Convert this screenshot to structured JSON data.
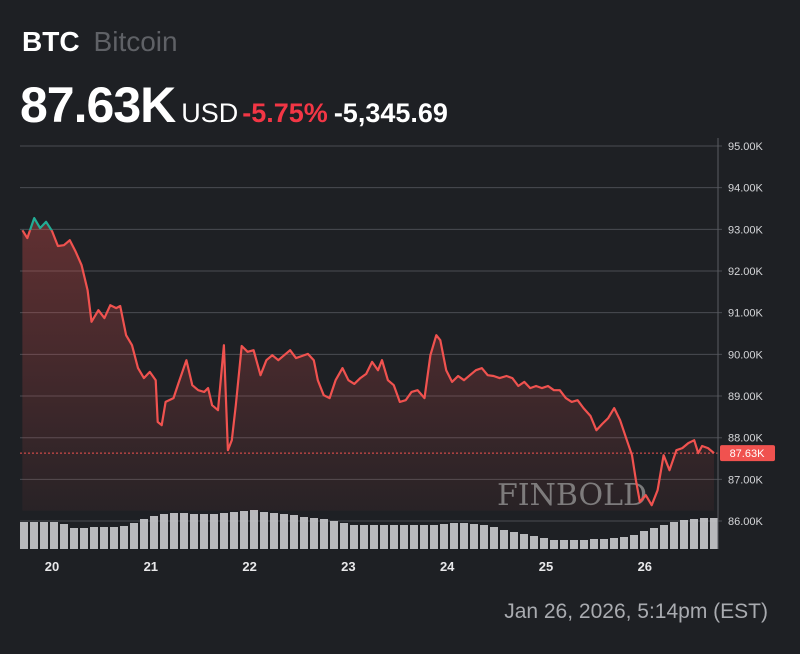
{
  "header": {
    "symbol": "BTC",
    "name": "Bitcoin",
    "price": "87.63K",
    "currency": "USD",
    "change_pct": "-5.75%",
    "change_abs": "-5,345.69"
  },
  "timestamp": "Jan 26, 2026, 5:14pm (EST)",
  "watermark": "FINBOLD",
  "chart_data": {
    "type": "line",
    "title": "",
    "xlabel": "",
    "ylabel": "",
    "x_ticks": [
      "20",
      "21",
      "22",
      "23",
      "24",
      "25",
      "26"
    ],
    "x_tick_values": [
      20,
      21,
      22,
      23,
      24,
      25,
      26
    ],
    "xlim": [
      19.68,
      26.72
    ],
    "y_ticks": [
      "95.00K",
      "94.00K",
      "93.00K",
      "92.00K",
      "91.00K",
      "90.00K",
      "89.00K",
      "88.00K",
      "87.00K",
      "86.00K"
    ],
    "y_tick_values": [
      95,
      94,
      93,
      92,
      91,
      90,
      89,
      88,
      87,
      86
    ],
    "ylim": [
      85.35,
      95.2
    ],
    "y_unit": "K USD",
    "grid": true,
    "last_price_label": "87.63K",
    "last_price": 87.63,
    "previous_close": 92.98,
    "colors": {
      "down": "#f0524f",
      "up": "#22ab94",
      "tag": "#f0524f",
      "volume": "#c9cacd"
    },
    "series": [
      {
        "points": [
          [
            19.7,
            92.98
          ],
          [
            19.75,
            92.79
          ],
          [
            19.82,
            93.27
          ],
          [
            19.88,
            93.03
          ],
          [
            19.94,
            93.18
          ],
          [
            20.0,
            92.96
          ],
          [
            20.06,
            92.6
          ],
          [
            20.12,
            92.62
          ],
          [
            20.18,
            92.74
          ],
          [
            20.24,
            92.46
          ],
          [
            20.3,
            92.14
          ],
          [
            20.36,
            91.54
          ],
          [
            20.4,
            90.78
          ],
          [
            20.47,
            91.06
          ],
          [
            20.53,
            90.87
          ],
          [
            20.59,
            91.18
          ],
          [
            20.65,
            91.11
          ],
          [
            20.69,
            91.16
          ],
          [
            20.75,
            90.46
          ],
          [
            20.81,
            90.22
          ],
          [
            20.87,
            89.67
          ],
          [
            20.93,
            89.43
          ],
          [
            20.99,
            89.58
          ],
          [
            21.05,
            89.38
          ],
          [
            21.07,
            88.38
          ],
          [
            21.11,
            88.3
          ],
          [
            21.15,
            88.86
          ],
          [
            21.23,
            88.95
          ],
          [
            21.28,
            89.31
          ],
          [
            21.36,
            89.86
          ],
          [
            21.42,
            89.26
          ],
          [
            21.48,
            89.14
          ],
          [
            21.54,
            89.1
          ],
          [
            21.58,
            89.19
          ],
          [
            21.62,
            88.78
          ],
          [
            21.68,
            88.66
          ],
          [
            21.74,
            90.22
          ],
          [
            21.78,
            87.7
          ],
          [
            21.82,
            87.94
          ],
          [
            21.86,
            88.78
          ],
          [
            21.92,
            90.2
          ],
          [
            21.98,
            90.06
          ],
          [
            22.04,
            90.1
          ],
          [
            22.11,
            89.5
          ],
          [
            22.17,
            89.86
          ],
          [
            22.23,
            89.98
          ],
          [
            22.29,
            89.86
          ],
          [
            22.35,
            89.98
          ],
          [
            22.41,
            90.1
          ],
          [
            22.47,
            89.91
          ],
          [
            22.53,
            89.96
          ],
          [
            22.59,
            90.01
          ],
          [
            22.65,
            89.86
          ],
          [
            22.69,
            89.38
          ],
          [
            22.75,
            89.02
          ],
          [
            22.81,
            88.95
          ],
          [
            22.87,
            89.38
          ],
          [
            22.94,
            89.67
          ],
          [
            23.0,
            89.38
          ],
          [
            23.06,
            89.29
          ],
          [
            23.12,
            89.43
          ],
          [
            23.18,
            89.53
          ],
          [
            23.24,
            89.82
          ],
          [
            23.3,
            89.62
          ],
          [
            23.34,
            89.86
          ],
          [
            23.4,
            89.38
          ],
          [
            23.46,
            89.26
          ],
          [
            23.52,
            88.86
          ],
          [
            23.58,
            88.9
          ],
          [
            23.64,
            89.1
          ],
          [
            23.7,
            89.14
          ],
          [
            23.77,
            88.95
          ],
          [
            23.83,
            89.98
          ],
          [
            23.89,
            90.46
          ],
          [
            23.93,
            90.34
          ],
          [
            23.99,
            89.62
          ],
          [
            24.05,
            89.34
          ],
          [
            24.11,
            89.48
          ],
          [
            24.17,
            89.38
          ],
          [
            24.23,
            89.5
          ],
          [
            24.29,
            89.62
          ],
          [
            24.35,
            89.67
          ],
          [
            24.41,
            89.5
          ],
          [
            24.47,
            89.48
          ],
          [
            24.53,
            89.43
          ],
          [
            24.6,
            89.48
          ],
          [
            24.66,
            89.43
          ],
          [
            24.72,
            89.24
          ],
          [
            24.78,
            89.34
          ],
          [
            24.84,
            89.19
          ],
          [
            24.9,
            89.24
          ],
          [
            24.96,
            89.19
          ],
          [
            25.02,
            89.24
          ],
          [
            25.08,
            89.14
          ],
          [
            25.14,
            89.14
          ],
          [
            25.2,
            88.95
          ],
          [
            25.26,
            88.86
          ],
          [
            25.32,
            88.9
          ],
          [
            25.38,
            88.71
          ],
          [
            25.45,
            88.52
          ],
          [
            25.51,
            88.18
          ],
          [
            25.57,
            88.33
          ],
          [
            25.63,
            88.47
          ],
          [
            25.69,
            88.71
          ],
          [
            25.75,
            88.42
          ],
          [
            25.81,
            88.0
          ],
          [
            25.87,
            87.58
          ],
          [
            25.91,
            86.98
          ],
          [
            25.95,
            86.46
          ],
          [
            26.01,
            86.62
          ],
          [
            26.07,
            86.38
          ],
          [
            26.13,
            86.74
          ],
          [
            26.19,
            87.58
          ],
          [
            26.25,
            87.22
          ],
          [
            26.32,
            87.7
          ],
          [
            26.38,
            87.75
          ],
          [
            26.44,
            87.87
          ],
          [
            26.5,
            87.94
          ],
          [
            26.54,
            87.63
          ],
          [
            26.58,
            87.8
          ],
          [
            26.64,
            87.75
          ],
          [
            26.7,
            87.63
          ]
        ]
      }
    ],
    "volume_relative": [
      27,
      27,
      27,
      27,
      25,
      21,
      21,
      22,
      22,
      22,
      23,
      26,
      30,
      33,
      35,
      36,
      36,
      35,
      35,
      35,
      36,
      37,
      38,
      39,
      37,
      36,
      35,
      34,
      32,
      31,
      30,
      28,
      26,
      24,
      24,
      24,
      24,
      24,
      24,
      24,
      24,
      24,
      25,
      26,
      26,
      25,
      24,
      22,
      19,
      17,
      15,
      13,
      11,
      9,
      9,
      9,
      9,
      10,
      10,
      11,
      12,
      14,
      18,
      21,
      24,
      27,
      29,
      30,
      31,
      31
    ]
  }
}
